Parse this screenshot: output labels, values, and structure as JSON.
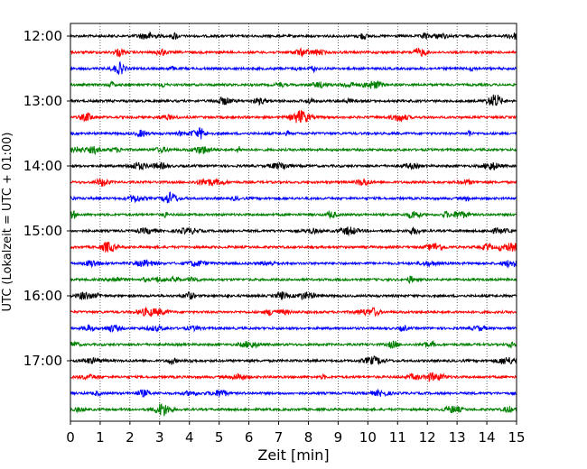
{
  "chart_data": {
    "type": "line",
    "title": "",
    "xlabel": "Zeit  [min]",
    "ylabel": "UTC (Lokalzeit = UTC + 01:00)",
    "xlim": [
      0,
      15
    ],
    "x_ticks": [
      "0",
      "1",
      "2",
      "3",
      "4",
      "5",
      "6",
      "7",
      "8",
      "9",
      "10",
      "11",
      "12",
      "13",
      "14",
      "15"
    ],
    "y_ticks": [
      "12:00",
      "13:00",
      "14:00",
      "15:00",
      "16:00",
      "17:00"
    ],
    "grid": "vertical-dotted",
    "legend": "none",
    "trace_interval_min": 15,
    "start_time": "12:00",
    "trace_colors": [
      "#000000",
      "#ff0000",
      "#0000ff",
      "#008000"
    ],
    "series": [
      {
        "start": "12:00"
      },
      {
        "start": "12:15"
      },
      {
        "start": "12:30"
      },
      {
        "start": "12:45"
      },
      {
        "start": "13:00"
      },
      {
        "start": "13:15"
      },
      {
        "start": "13:30"
      },
      {
        "start": "13:45"
      },
      {
        "start": "14:00"
      },
      {
        "start": "14:15"
      },
      {
        "start": "14:30"
      },
      {
        "start": "14:45"
      },
      {
        "start": "15:00"
      },
      {
        "start": "15:15"
      },
      {
        "start": "15:30"
      },
      {
        "start": "15:45"
      },
      {
        "start": "16:00"
      },
      {
        "start": "16:15"
      },
      {
        "start": "16:30"
      },
      {
        "start": "16:45"
      },
      {
        "start": "17:00"
      },
      {
        "start": "17:15"
      },
      {
        "start": "17:30"
      },
      {
        "start": "17:45"
      }
    ]
  }
}
